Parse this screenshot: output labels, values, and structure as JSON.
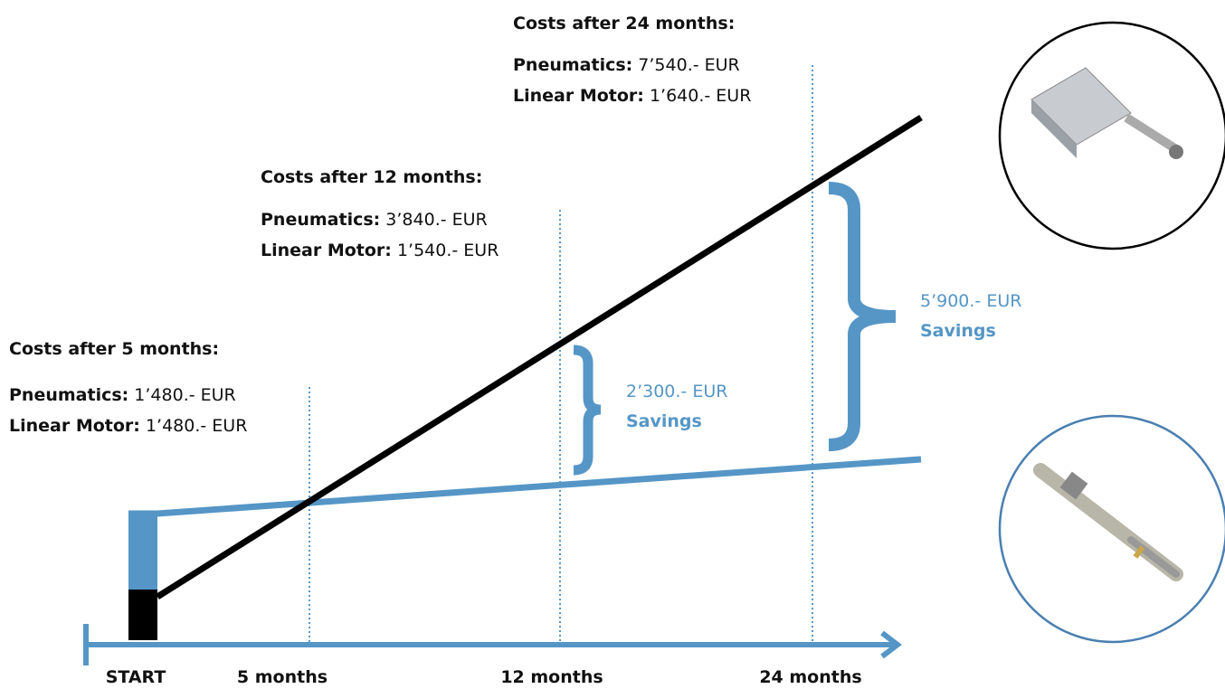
{
  "callouts": [
    {
      "title": "Costs after 5 months:",
      "rows": [
        {
          "label": "Pneumatics:",
          "value": "1’480.- EUR"
        },
        {
          "label": "Linear Motor:",
          "value": "1’480.- EUR"
        }
      ]
    },
    {
      "title": "Costs after 12 months:",
      "rows": [
        {
          "label": "Pneumatics:",
          "value": "3’840.- EUR"
        },
        {
          "label": "Linear Motor:",
          "value": "1’540.- EUR"
        }
      ]
    },
    {
      "title": "Costs after 24 months:",
      "rows": [
        {
          "label": "Pneumatics:",
          "value": "7’540.- EUR"
        },
        {
          "label": "Linear Motor:",
          "value": "1’640.- EUR"
        }
      ]
    }
  ],
  "savings": [
    {
      "amount": "2’300.- EUR",
      "label": "Savings"
    },
    {
      "amount": "5’900.- EUR",
      "label": "Savings"
    }
  ],
  "axis": {
    "labels": [
      "START",
      "5 months",
      "12 months",
      "24 months"
    ]
  }
}
